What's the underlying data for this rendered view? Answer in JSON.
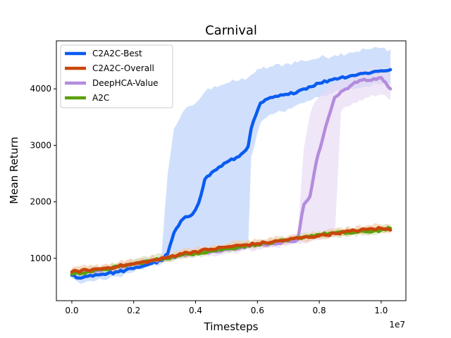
{
  "chart_data": {
    "type": "line",
    "title": "Carnival",
    "xlabel": "Timesteps",
    "ylabel": "Mean Return",
    "x_scale_label": "1e7",
    "xlim": [
      -0.05,
      1.08
    ],
    "ylim": [
      250,
      4850
    ],
    "xticks": [
      0.0,
      0.2,
      0.4,
      0.6,
      0.8,
      1.0
    ],
    "xtick_labels": [
      "0.0",
      "0.2",
      "0.4",
      "0.6",
      "0.8",
      "1.0"
    ],
    "yticks": [
      1000,
      2000,
      3000,
      4000
    ],
    "ytick_labels": [
      "1000",
      "2000",
      "3000",
      "4000"
    ],
    "grid": false,
    "legend_position": "top-left",
    "series": [
      {
        "name": "C2A2C-Best",
        "color": "#0a5cf0",
        "band_color": "#b7d0fb",
        "x": [
          0.0,
          0.03,
          0.06,
          0.1,
          0.15,
          0.2,
          0.25,
          0.29,
          0.31,
          0.33,
          0.36,
          0.39,
          0.41,
          0.43,
          0.46,
          0.5,
          0.54,
          0.57,
          0.58,
          0.61,
          0.65,
          0.7,
          0.75,
          0.8,
          0.85,
          0.9,
          0.95,
          1.0,
          1.03
        ],
        "values": [
          700,
          650,
          700,
          720,
          760,
          820,
          900,
          960,
          1080,
          1450,
          1700,
          1780,
          1980,
          2400,
          2550,
          2700,
          2800,
          2980,
          3300,
          3750,
          3850,
          3900,
          4000,
          4100,
          4180,
          4230,
          4280,
          4320,
          4340
        ],
        "lower": [
          650,
          550,
          600,
          620,
          680,
          760,
          850,
          900,
          950,
          1000,
          1050,
          1080,
          1100,
          1120,
          1140,
          1160,
          1180,
          1200,
          2800,
          3400,
          3550,
          3650,
          3750,
          3850,
          3950,
          4000,
          4050,
          4080,
          4100
        ],
        "upper": [
          780,
          780,
          800,
          820,
          860,
          920,
          1000,
          1050,
          2500,
          3300,
          3600,
          3700,
          3800,
          3950,
          4050,
          4100,
          4150,
          4200,
          4250,
          4350,
          4400,
          4450,
          4500,
          4550,
          4600,
          4650,
          4700,
          4720,
          4700
        ]
      },
      {
        "name": "C2A2C-Overall",
        "color": "#c9460a",
        "band_color": "#f2c9a8",
        "x": [
          0.0,
          0.05,
          0.1,
          0.15,
          0.2,
          0.25,
          0.3,
          0.35,
          0.4,
          0.45,
          0.5,
          0.55,
          0.6,
          0.65,
          0.7,
          0.75,
          0.8,
          0.85,
          0.9,
          0.95,
          1.0,
          1.03
        ],
        "values": [
          760,
          790,
          820,
          860,
          900,
          950,
          1000,
          1080,
          1120,
          1160,
          1200,
          1230,
          1260,
          1290,
          1330,
          1370,
          1400,
          1440,
          1480,
          1510,
          1530,
          1500
        ],
        "lower": [
          700,
          720,
          760,
          800,
          840,
          890,
          940,
          1010,
          1050,
          1090,
          1130,
          1160,
          1190,
          1220,
          1260,
          1300,
          1330,
          1370,
          1410,
          1440,
          1460,
          1430
        ],
        "upper": [
          830,
          860,
          890,
          930,
          970,
          1020,
          1070,
          1150,
          1190,
          1230,
          1270,
          1300,
          1330,
          1360,
          1400,
          1440,
          1470,
          1510,
          1550,
          1580,
          1600,
          1570
        ]
      },
      {
        "name": "DeepHCA-Value",
        "color": "#b48cdc",
        "band_color": "#e6d8f4",
        "x": [
          0.0,
          0.05,
          0.1,
          0.15,
          0.2,
          0.25,
          0.3,
          0.35,
          0.4,
          0.45,
          0.5,
          0.55,
          0.6,
          0.65,
          0.7,
          0.73,
          0.75,
          0.77,
          0.79,
          0.81,
          0.83,
          0.85,
          0.87,
          0.9,
          0.93,
          0.96,
          1.0,
          1.03
        ],
        "values": [
          720,
          760,
          800,
          850,
          900,
          950,
          1000,
          1050,
          1090,
          1120,
          1160,
          1200,
          1230,
          1260,
          1300,
          1330,
          1950,
          2100,
          2700,
          3100,
          3500,
          3850,
          3950,
          4050,
          4150,
          4150,
          4200,
          4000
        ],
        "lower": [
          650,
          690,
          730,
          780,
          830,
          880,
          930,
          980,
          1020,
          1050,
          1090,
          1130,
          1160,
          1190,
          1230,
          1260,
          1270,
          1300,
          1320,
          1340,
          1360,
          1380,
          3600,
          3700,
          3800,
          3850,
          3900,
          3800
        ],
        "upper": [
          790,
          830,
          870,
          920,
          970,
          1020,
          1070,
          1120,
          1160,
          1190,
          1230,
          1270,
          1300,
          1330,
          1370,
          1400,
          2950,
          3550,
          3800,
          3950,
          4050,
          4100,
          4150,
          4250,
          4350,
          4350,
          4350,
          4250
        ]
      },
      {
        "name": "A2C",
        "color": "#5aa10a",
        "band_color": "#cfe3b6",
        "x": [
          0.0,
          0.05,
          0.1,
          0.15,
          0.2,
          0.25,
          0.3,
          0.35,
          0.4,
          0.45,
          0.5,
          0.55,
          0.6,
          0.65,
          0.7,
          0.75,
          0.8,
          0.85,
          0.9,
          0.95,
          1.0,
          1.03
        ],
        "values": [
          720,
          760,
          800,
          850,
          900,
          950,
          1000,
          1050,
          1090,
          1130,
          1170,
          1210,
          1250,
          1280,
          1320,
          1380,
          1420,
          1450,
          1450,
          1470,
          1500,
          1530
        ],
        "lower": [
          660,
          700,
          740,
          790,
          840,
          890,
          940,
          990,
          1030,
          1070,
          1110,
          1150,
          1190,
          1220,
          1260,
          1320,
          1360,
          1390,
          1390,
          1410,
          1440,
          1470
        ],
        "upper": [
          790,
          830,
          870,
          920,
          970,
          1020,
          1070,
          1120,
          1160,
          1200,
          1240,
          1280,
          1320,
          1350,
          1390,
          1450,
          1490,
          1520,
          1520,
          1540,
          1570,
          1600
        ]
      }
    ]
  }
}
